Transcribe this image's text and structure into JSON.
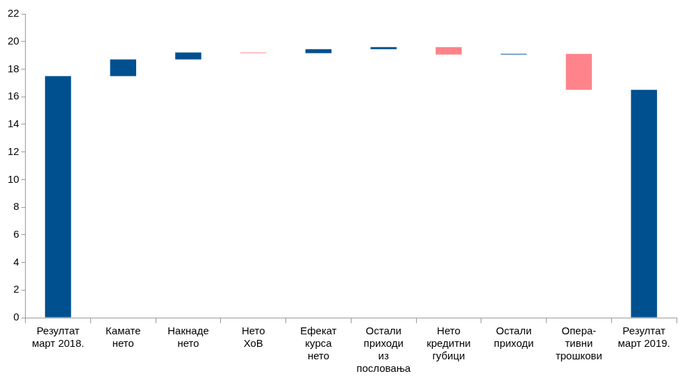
{
  "chart_data": {
    "type": "bar",
    "categories": [
      "Резултат\nмарт 2018.",
      "Камате\nнето",
      "Накнаде\nнето",
      "Нето\nХоВ",
      "Ефекат\nкурса\nнето",
      "Остали\nприходи\nиз\nпословања",
      "Нето\nкредитни\nгубици",
      "Остали\nприходи",
      "Опера-\nтивни\nтрошкови",
      "Резултат\nмарт 2019."
    ],
    "base": [
      0,
      17.5,
      18.7,
      19.2,
      19.15,
      19.45,
      19.6,
      19.05,
      19.1,
      0
    ],
    "values": [
      17.5,
      1.2,
      0.5,
      -0.05,
      0.3,
      0.15,
      -0.55,
      0.05,
      -2.6,
      16.5
    ],
    "colors": [
      "#00508f",
      "#00508f",
      "#00508f",
      "#ff838a",
      "#00508f",
      "#00508f",
      "#ff838a",
      "#00508f",
      "#ff838a",
      "#00508f"
    ],
    "ylim": [
      0,
      22
    ],
    "yticks": [
      0,
      2,
      4,
      6,
      8,
      10,
      12,
      14,
      16,
      18,
      20,
      22
    ],
    "grid": false,
    "legend": false
  }
}
